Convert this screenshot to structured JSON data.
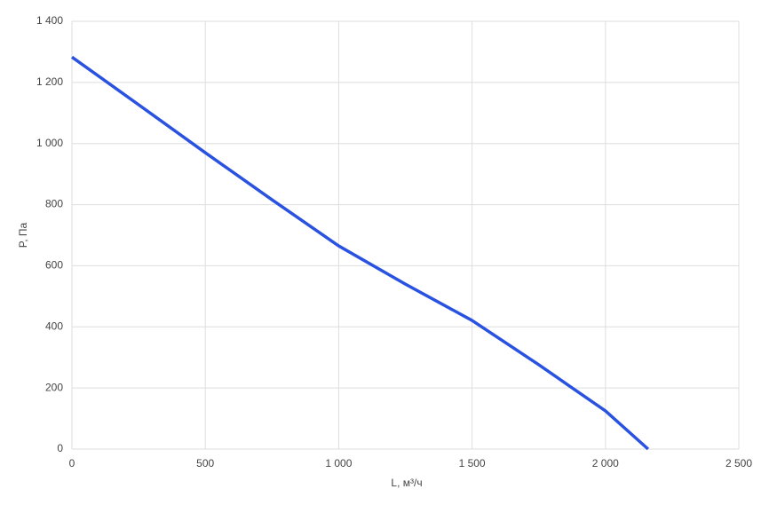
{
  "chart_data": {
    "type": "line",
    "x_label": "L, м³/ч",
    "y_label": "P, Па",
    "series": [
      {
        "color": "#2a52e0",
        "x": [
          0,
          250,
          500,
          750,
          1000,
          1250,
          1500,
          1750,
          2000,
          2160
        ],
        "values": [
          1283,
          1127,
          970,
          816,
          665,
          540,
          421,
          276,
          125,
          0
        ]
      }
    ],
    "xlim": [
      0,
      2500
    ],
    "xticks": [
      0,
      500,
      {
        "value": 1000,
        "label": "1 000"
      },
      {
        "value": 1500,
        "label": "1 500"
      },
      {
        "value": 2000,
        "label": "2 000"
      },
      {
        "value": 2500,
        "label": "2 500"
      }
    ],
    "ylim": [
      0,
      1400
    ],
    "yticks": [
      0,
      200,
      400,
      600,
      800,
      {
        "value": 1000,
        "label": "1 000"
      },
      {
        "value": 1200,
        "label": "1 200"
      },
      {
        "value": 1400,
        "label": "1 400"
      }
    ],
    "grid": true
  }
}
